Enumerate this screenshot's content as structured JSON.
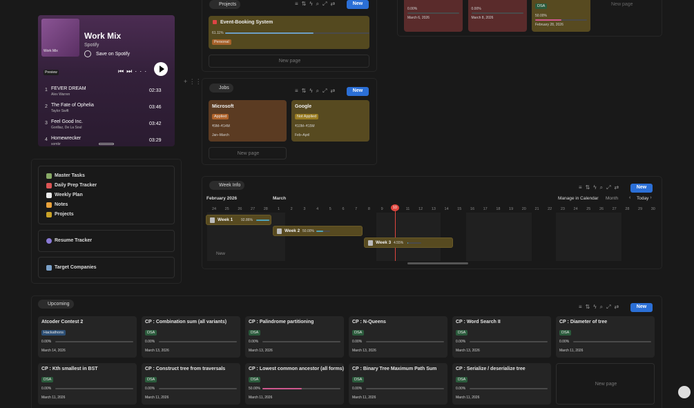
{
  "spotify": {
    "playlist": "Work Mix",
    "art_label": "Work Mix",
    "source": "Spotify",
    "save": "Save on Spotify",
    "badge": "Preview",
    "tracks": [
      {
        "n": 1,
        "title": "FEVER DREAM",
        "artist": "Alex Warren",
        "duration": "02:33"
      },
      {
        "n": 2,
        "title": "The Fate of Ophelia",
        "artist": "Taylor Swift",
        "duration": "03:46"
      },
      {
        "n": 3,
        "title": "Feel Good Inc.",
        "artist": "Gorillaz, De La Soul",
        "duration": "03:42"
      },
      {
        "n": 4,
        "title": "Homewrecker",
        "artist": "sombr",
        "duration": "03:29"
      }
    ]
  },
  "nav": {
    "links": [
      "Master Tasks",
      "Daily Prep Tracker",
      "Weekly Plan",
      "Notes",
      "Projects"
    ],
    "resume": "Resume Tracker",
    "companies": "Target Companies"
  },
  "projects": {
    "tab": "Projects",
    "new": "New",
    "new_page": "New page",
    "cards": [
      {
        "title": "Event-Booking System",
        "progress": 61.11,
        "progress_label": "61.11%",
        "tag": "Personal"
      }
    ]
  },
  "jobs": {
    "tab": "Jobs",
    "new": "New",
    "new_page": "New page",
    "cards": [
      {
        "title": "Microsoft",
        "status": "Applied",
        "salary": "₹9M–₹14M",
        "period": "Jan–March",
        "color": "#5b3b22",
        "status_color": "#b0642c"
      },
      {
        "title": "Google",
        "status": "Not Applied",
        "salary": "₹10M–₹15M",
        "period": "Feb–April",
        "color": "#574a20",
        "status_color": "#9a7d22"
      }
    ]
  },
  "top": {
    "new_page": "New page",
    "cards": [
      {
        "progress": 0,
        "progress_label": "0.00%",
        "date": "March 6, 2026",
        "color": "#5a2b2b"
      },
      {
        "progress": 0,
        "progress_label": "0.00%",
        "date": "March 8, 2026",
        "color": "#5a2b2b"
      },
      {
        "tag": "DSA",
        "progress": 50,
        "progress_label": "50.00%",
        "date": "February 28, 2026",
        "color": "#574a20"
      }
    ]
  },
  "week_info": {
    "tab": "Week Info",
    "new": "New",
    "month1": "February 2026",
    "month2": "March",
    "manage": "Manage in Calendar",
    "view": "Month",
    "today": "Today",
    "add": "New",
    "days": [
      24,
      25,
      26,
      27,
      28,
      1,
      2,
      3,
      4,
      5,
      6,
      7,
      8,
      9,
      10,
      11,
      12,
      13,
      14,
      15,
      16,
      17,
      18,
      19,
      20,
      21,
      22,
      23,
      24,
      25,
      26,
      27,
      28,
      29,
      30
    ],
    "current_day": 10,
    "weeks": [
      {
        "name": "Week 1",
        "progress": 92.86,
        "progress_label": "92.86%"
      },
      {
        "name": "Week 2",
        "progress": 50,
        "progress_label": "50.00%"
      },
      {
        "name": "Week 3",
        "progress": 4.55,
        "progress_label": "4.55%"
      }
    ]
  },
  "upcoming": {
    "tab": "Upcoming",
    "new": "New",
    "new_page": "New page",
    "cards": [
      {
        "title": "Atcoder Contest 2",
        "tag": "Hackathons",
        "tag_color": "#2d4f75",
        "progress": 0,
        "progress_label": "0.00%",
        "date": "March 14, 2026"
      },
      {
        "title": "CP : Combination sum (all variants)",
        "tag": "DSA",
        "tag_color": "#2b5b3c",
        "progress": 0,
        "progress_label": "0.00%",
        "date": "March 13, 2026"
      },
      {
        "title": "CP : Palindrome partitioning",
        "tag": "DSA",
        "tag_color": "#2b5b3c",
        "progress": 0,
        "progress_label": "0.00%",
        "date": "March 13, 2026"
      },
      {
        "title": "CP : N-Queens",
        "tag": "DSA",
        "tag_color": "#2b5b3c",
        "progress": 0,
        "progress_label": "0.00%",
        "date": "March 13, 2026"
      },
      {
        "title": "CP : Word Search II",
        "tag": "DSA",
        "tag_color": "#2b5b3c",
        "progress": 0,
        "progress_label": "0.00%",
        "date": "March 13, 2026"
      },
      {
        "title": "CP : Diameter of tree",
        "tag": "DSA",
        "tag_color": "#2b5b3c",
        "progress": 0,
        "progress_label": "0.00%",
        "date": "March 11, 2026"
      },
      {
        "title": "CP : Kth smallest in BST",
        "tag": "DSA",
        "tag_color": "#2b5b3c",
        "progress": 0,
        "progress_label": "0.00%",
        "date": "March 11, 2026"
      },
      {
        "title": "CP : Construct tree from traversals",
        "tag": "DSA",
        "tag_color": "#2b5b3c",
        "progress": 0,
        "progress_label": "0.00%",
        "date": "March 11, 2026"
      },
      {
        "title": "CP : Lowest common ancestor (all forms)",
        "tag": "DSA",
        "tag_color": "#2b5b3c",
        "progress": 50,
        "progress_label": "50.00%",
        "date": "March 11, 2026"
      },
      {
        "title": "CP : Binary Tree Maximum Path Sum",
        "tag": "DSA",
        "tag_color": "#2b5b3c",
        "progress": 0,
        "progress_label": "0.00%",
        "date": "March 11, 2026"
      },
      {
        "title": "CP : Serialize / deserialize tree",
        "tag": "DSA",
        "tag_color": "#2b5b3c",
        "progress": 0,
        "progress_label": "0.00%",
        "date": "March 11, 2026"
      }
    ]
  }
}
